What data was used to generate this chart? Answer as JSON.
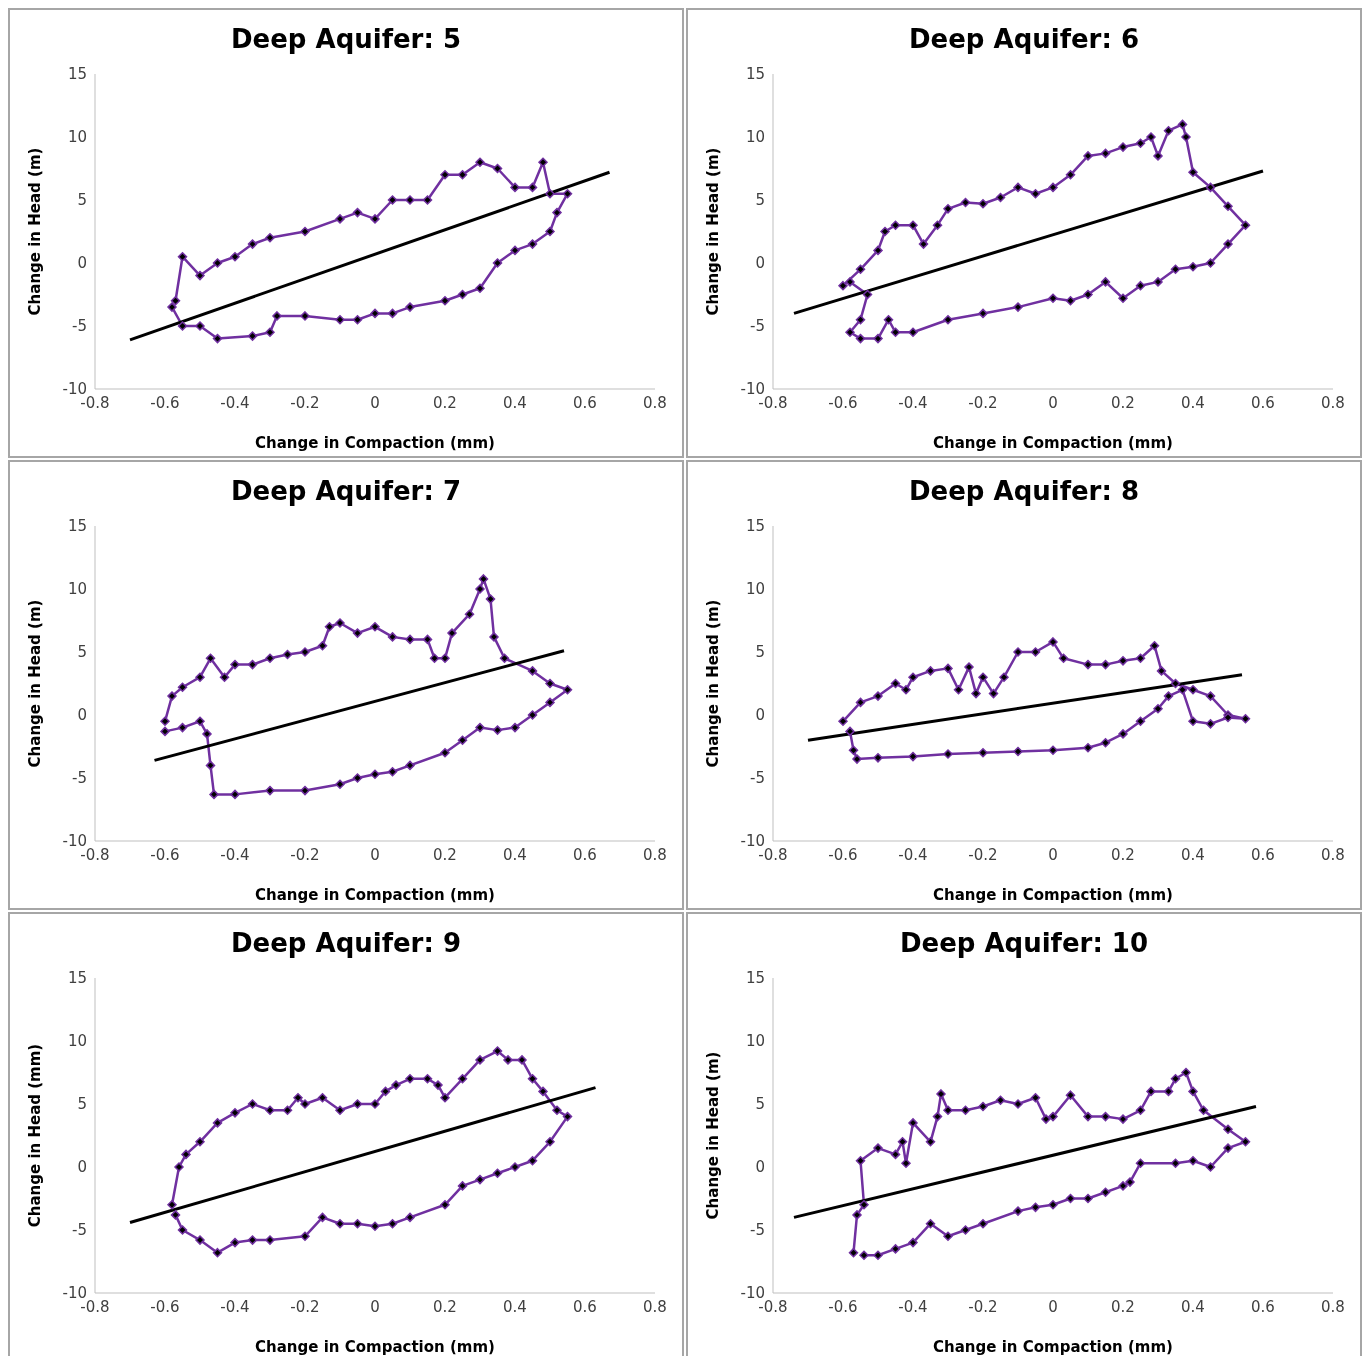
{
  "chart_data": [
    {
      "type": "line",
      "title": "Deep Aquifer: 5",
      "xlabel": "Change in Compaction (mm)",
      "ylabel": "Change in Head (m)",
      "xlim": [
        -0.8,
        0.8
      ],
      "xticks": [
        -0.8,
        -0.6,
        -0.4,
        -0.2,
        0,
        0.2,
        0.4,
        0.6,
        0.8
      ],
      "ylim": [
        -10,
        15
      ],
      "yticks": [
        -10,
        -5,
        0,
        5,
        10,
        15
      ],
      "series": [
        {
          "color": "#7030a0",
          "marker": "diamond",
          "x": [
            -0.57,
            -0.55,
            -0.5,
            -0.45,
            -0.4,
            -0.35,
            -0.3,
            -0.2,
            -0.1,
            -0.05,
            0,
            0.05,
            0.1,
            0.15,
            0.2,
            0.25,
            0.3,
            0.35,
            0.4,
            0.45,
            0.48,
            0.5,
            0.55,
            0.52,
            0.5,
            0.45,
            0.4,
            0.35,
            0.3,
            0.25,
            0.2,
            0.1,
            0.05,
            0,
            -0.05,
            -0.1,
            -0.2,
            -0.28,
            -0.3,
            -0.35,
            -0.45,
            -0.5,
            -0.55,
            -0.58
          ],
          "values": [
            -3,
            0.5,
            -1,
            0,
            0.5,
            1.5,
            2,
            2.5,
            3.5,
            4,
            3.5,
            5,
            5,
            5,
            7,
            7,
            8,
            7.5,
            6,
            6,
            8,
            5.5,
            5.5,
            4,
            2.5,
            1.5,
            1,
            0,
            -2,
            -2.5,
            -3,
            -3.5,
            -4,
            -4,
            -4.5,
            -4.5,
            -4.2,
            -4.2,
            -5.5,
            -5.8,
            -6,
            -5,
            -5,
            -3.5
          ]
        },
        {
          "color": "#000000",
          "marker": "none",
          "x": [
            -0.7,
            0.67
          ],
          "values": [
            -6.1,
            7.2
          ]
        }
      ]
    },
    {
      "type": "line",
      "title": "Deep Aquifer: 6",
      "xlabel": "Change in Compaction (mm)",
      "ylabel": "Change in Head (m)",
      "xlim": [
        -0.8,
        0.8
      ],
      "xticks": [
        -0.8,
        -0.6,
        -0.4,
        -0.2,
        0,
        0.2,
        0.4,
        0.6,
        0.8
      ],
      "ylim": [
        -10,
        15
      ],
      "yticks": [
        -10,
        -5,
        0,
        5,
        10,
        15
      ],
      "series": [
        {
          "color": "#7030a0",
          "marker": "diamond",
          "x": [
            -0.6,
            -0.55,
            -0.5,
            -0.48,
            -0.45,
            -0.4,
            -0.37,
            -0.33,
            -0.3,
            -0.25,
            -0.2,
            -0.15,
            -0.1,
            -0.05,
            0,
            0.05,
            0.1,
            0.15,
            0.2,
            0.25,
            0.28,
            0.3,
            0.33,
            0.37,
            0.38,
            0.4,
            0.45,
            0.5,
            0.55,
            0.5,
            0.45,
            0.4,
            0.35,
            0.3,
            0.25,
            0.2,
            0.15,
            0.1,
            0.05,
            0,
            -0.1,
            -0.2,
            -0.3,
            -0.4,
            -0.45,
            -0.47,
            -0.5,
            -0.55,
            -0.58,
            -0.55,
            -0.53,
            -0.58
          ],
          "values": [
            -1.8,
            -0.5,
            1,
            2.5,
            3,
            3,
            1.5,
            3,
            4.3,
            4.8,
            4.7,
            5.2,
            6,
            5.5,
            6,
            7,
            8.5,
            8.7,
            9.2,
            9.5,
            10,
            8.5,
            10.5,
            11,
            10,
            7.2,
            6,
            4.5,
            3,
            1.5,
            0,
            -0.3,
            -0.5,
            -1.5,
            -1.8,
            -2.8,
            -1.5,
            -2.5,
            -3,
            -2.8,
            -3.5,
            -4,
            -4.5,
            -5.5,
            -5.5,
            -4.5,
            -6,
            -6,
            -5.5,
            -4.5,
            -2.5,
            -1.5
          ]
        },
        {
          "color": "#000000",
          "marker": "none",
          "x": [
            -0.74,
            0.6
          ],
          "values": [
            -4,
            7.3
          ]
        }
      ]
    },
    {
      "type": "line",
      "title": "Deep Aquifer: 7",
      "xlabel": "Change in Compaction (mm)",
      "ylabel": "Change in Head (m)",
      "xlim": [
        -0.8,
        0.8
      ],
      "xticks": [
        -0.8,
        -0.6,
        -0.4,
        -0.2,
        0,
        0.2,
        0.4,
        0.6,
        0.8
      ],
      "ylim": [
        -10,
        15
      ],
      "yticks": [
        -10,
        -5,
        0,
        5,
        10,
        15
      ],
      "series": [
        {
          "color": "#7030a0",
          "marker": "diamond",
          "x": [
            -0.6,
            -0.58,
            -0.55,
            -0.5,
            -0.47,
            -0.43,
            -0.4,
            -0.35,
            -0.3,
            -0.25,
            -0.2,
            -0.15,
            -0.13,
            -0.1,
            -0.05,
            0,
            0.05,
            0.1,
            0.15,
            0.17,
            0.2,
            0.22,
            0.27,
            0.3,
            0.31,
            0.33,
            0.34,
            0.37,
            0.45,
            0.5,
            0.55,
            0.5,
            0.45,
            0.4,
            0.35,
            0.3,
            0.25,
            0.2,
            0.1,
            0.05,
            0,
            -0.05,
            -0.1,
            -0.2,
            -0.3,
            -0.4,
            -0.46,
            -0.47,
            -0.48,
            -0.5,
            -0.55,
            -0.6
          ],
          "values": [
            -0.5,
            1.5,
            2.2,
            3,
            4.5,
            3,
            4,
            4,
            4.5,
            4.8,
            5,
            5.5,
            7,
            7.3,
            6.5,
            7,
            6.2,
            6,
            6,
            4.5,
            4.5,
            6.5,
            8,
            10,
            10.8,
            9.2,
            6.2,
            4.5,
            3.5,
            2.5,
            2,
            1,
            0,
            -1,
            -1.2,
            -1,
            -2,
            -3,
            -4,
            -4.5,
            -4.7,
            -5,
            -5.5,
            -6,
            -6,
            -6.3,
            -6.3,
            -4,
            -1.5,
            -0.5,
            -1,
            -1.3
          ]
        },
        {
          "color": "#000000",
          "marker": "none",
          "x": [
            -0.63,
            0.54
          ],
          "values": [
            -3.6,
            5.1
          ]
        }
      ]
    },
    {
      "type": "line",
      "title": "Deep Aquifer: 8",
      "xlabel": "Change in Compaction (mm)",
      "ylabel": "Change in Head (m)",
      "xlim": [
        -0.8,
        0.8
      ],
      "xticks": [
        -0.8,
        -0.6,
        -0.4,
        -0.2,
        0,
        0.2,
        0.4,
        0.6,
        0.8
      ],
      "ylim": [
        -10,
        15
      ],
      "yticks": [
        -10,
        -5,
        0,
        5,
        10,
        15
      ],
      "series": [
        {
          "color": "#7030a0",
          "marker": "diamond",
          "x": [
            -0.6,
            -0.55,
            -0.5,
            -0.45,
            -0.42,
            -0.4,
            -0.35,
            -0.3,
            -0.27,
            -0.24,
            -0.22,
            -0.2,
            -0.17,
            -0.14,
            -0.1,
            -0.05,
            0,
            0.03,
            0.1,
            0.15,
            0.2,
            0.25,
            0.29,
            0.31,
            0.35,
            0.4,
            0.45,
            0.5,
            0.55,
            0.5,
            0.45,
            0.4,
            0.37,
            0.33,
            0.3,
            0.25,
            0.2,
            0.15,
            0.1,
            0,
            -0.1,
            -0.2,
            -0.3,
            -0.4,
            -0.5,
            -0.56,
            -0.57,
            -0.58
          ],
          "values": [
            -0.5,
            1,
            1.5,
            2.5,
            2,
            3,
            3.5,
            3.7,
            2,
            3.8,
            1.7,
            3,
            1.7,
            3,
            5,
            5,
            5.8,
            4.5,
            4,
            4,
            4.3,
            4.5,
            5.5,
            3.5,
            2.5,
            2,
            1.5,
            0,
            -0.3,
            -0.2,
            -0.7,
            -0.5,
            2,
            1.5,
            0.5,
            -0.5,
            -1.5,
            -2.2,
            -2.6,
            -2.8,
            -2.9,
            -3,
            -3.1,
            -3.3,
            -3.4,
            -3.5,
            -2.8,
            -1.3
          ]
        },
        {
          "color": "#000000",
          "marker": "none",
          "x": [
            -0.7,
            0.54
          ],
          "values": [
            -2,
            3.2
          ]
        }
      ]
    },
    {
      "type": "line",
      "title": "Deep Aquifer: 9",
      "xlabel": "Change in Compaction (mm)",
      "ylabel": "Change in Head (mm)",
      "xlim": [
        -0.8,
        0.8
      ],
      "xticks": [
        -0.8,
        -0.6,
        -0.4,
        -0.2,
        0,
        0.2,
        0.4,
        0.6,
        0.8
      ],
      "ylim": [
        -10,
        15
      ],
      "yticks": [
        -10,
        -5,
        0,
        5,
        10,
        15
      ],
      "series": [
        {
          "color": "#7030a0",
          "marker": "diamond",
          "x": [
            -0.58,
            -0.56,
            -0.54,
            -0.5,
            -0.45,
            -0.4,
            -0.35,
            -0.3,
            -0.25,
            -0.22,
            -0.2,
            -0.15,
            -0.1,
            -0.05,
            0,
            0.03,
            0.06,
            0.1,
            0.15,
            0.18,
            0.2,
            0.25,
            0.3,
            0.35,
            0.38,
            0.42,
            0.45,
            0.48,
            0.52,
            0.55,
            0.5,
            0.45,
            0.4,
            0.35,
            0.3,
            0.25,
            0.2,
            0.1,
            0.05,
            0,
            -0.05,
            -0.1,
            -0.15,
            -0.2,
            -0.3,
            -0.35,
            -0.4,
            -0.45,
            -0.5,
            -0.55,
            -0.57
          ],
          "values": [
            -3,
            0,
            1,
            2,
            3.5,
            4.3,
            5,
            4.5,
            4.5,
            5.5,
            5,
            5.5,
            4.5,
            5,
            5,
            6,
            6.5,
            7,
            7,
            6.5,
            5.5,
            7,
            8.5,
            9.2,
            8.5,
            8.5,
            7,
            6,
            4.5,
            4,
            2,
            0.5,
            0,
            -0.5,
            -1,
            -1.5,
            -3,
            -4,
            -4.5,
            -4.7,
            -4.5,
            -4.5,
            -4,
            -5.5,
            -5.8,
            -5.8,
            -6,
            -6.8,
            -5.8,
            -5,
            -3.8
          ]
        },
        {
          "color": "#000000",
          "marker": "none",
          "x": [
            -0.7,
            0.63
          ],
          "values": [
            -4.4,
            6.3
          ]
        }
      ]
    },
    {
      "type": "line",
      "title": "Deep Aquifer: 10",
      "xlabel": "Change in Compaction (mm)",
      "ylabel": "Change in Head (m)",
      "xlim": [
        -0.8,
        0.8
      ],
      "xticks": [
        -0.8,
        -0.6,
        -0.4,
        -0.2,
        0,
        0.2,
        0.4,
        0.6,
        0.8
      ],
      "ylim": [
        -10,
        15
      ],
      "yticks": [
        -10,
        -5,
        0,
        5,
        10,
        15
      ],
      "series": [
        {
          "color": "#7030a0",
          "marker": "diamond",
          "x": [
            -0.57,
            -0.56,
            -0.54,
            -0.55,
            -0.5,
            -0.45,
            -0.43,
            -0.42,
            -0.4,
            -0.35,
            -0.33,
            -0.32,
            -0.3,
            -0.25,
            -0.2,
            -0.15,
            -0.1,
            -0.05,
            -0.02,
            0,
            0.05,
            0.1,
            0.15,
            0.2,
            0.25,
            0.28,
            0.33,
            0.35,
            0.38,
            0.4,
            0.43,
            0.5,
            0.55,
            0.5,
            0.45,
            0.4,
            0.35,
            0.25,
            0.22,
            0.2,
            0.15,
            0.1,
            0.05,
            0,
            -0.05,
            -0.1,
            -0.2,
            -0.25,
            -0.3,
            -0.35,
            -0.4,
            -0.45,
            -0.5,
            -0.54
          ],
          "values": [
            -6.8,
            -3.8,
            -3,
            0.5,
            1.5,
            1,
            2,
            0.3,
            3.5,
            2,
            4,
            5.8,
            4.5,
            4.5,
            4.8,
            5.3,
            5,
            5.5,
            3.8,
            4,
            5.7,
            4,
            4,
            3.8,
            4.5,
            6,
            6,
            7,
            7.5,
            6,
            4.5,
            3,
            2,
            1.5,
            0,
            0.5,
            0.3,
            0.3,
            -1.2,
            -1.5,
            -2,
            -2.5,
            -2.5,
            -3,
            -3.2,
            -3.5,
            -4.5,
            -5,
            -5.5,
            -4.5,
            -6,
            -6.5,
            -7,
            -7
          ]
        },
        {
          "color": "#000000",
          "marker": "none",
          "x": [
            -0.74,
            0.58
          ],
          "values": [
            -4,
            4.8
          ]
        }
      ]
    }
  ]
}
